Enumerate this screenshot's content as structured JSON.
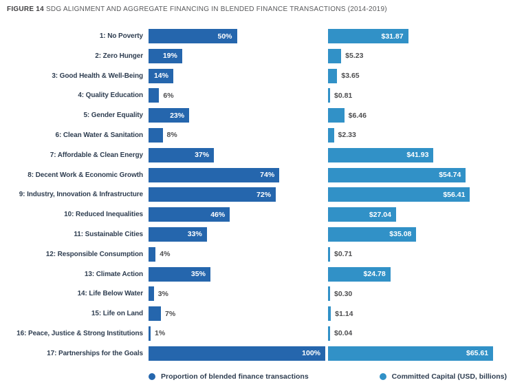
{
  "title": {
    "prefix": "FIGURE 14",
    "text": "SDG ALIGNMENT AND AGGREGATE FINANCING IN BLENDED FINANCE TRANSACTIONS (2014-2019)"
  },
  "legend": {
    "items": [
      {
        "label": "Proportion of blended finance transactions",
        "color": "#2566AD"
      },
      {
        "label": "Committed Capital (USD, billions)",
        "color": "#3191C7"
      }
    ]
  },
  "chart_data": {
    "type": "bar",
    "orientation": "horizontal",
    "title": "FIGURE 14 SDG ALIGNMENT AND AGGREGATE FINANCING IN BLENDED FINANCE TRANSACTIONS (2014-2019)",
    "grid": false,
    "legend_position": "bottom",
    "value_labels": "on bars",
    "categories": [
      "1: No Poverty",
      "2: Zero Hunger",
      "3: Good Health & Well-Being",
      "4: Quality Education",
      "5: Gender Equality",
      "6: Clean Water & Sanitation",
      "7: Affordable & Clean Energy",
      "8: Decent Work & Economic Growth",
      "9: Industry, Innovation & Infrastructure",
      "10: Reduced Inequalities",
      "11: Sustainable Cities",
      "12: Responsible Consumption",
      "13: Climate Action",
      "14: Life Below Water",
      "15: Life on Land",
      "16: Peace, Justice & Strong Institutions",
      "17: Partnerships for the Goals"
    ],
    "series": [
      {
        "name": "Proportion of blended finance transactions",
        "unit": "percent of transactions",
        "color": "#2566AD",
        "axis_range": [
          0,
          100
        ],
        "values": [
          50,
          19,
          14,
          6,
          23,
          8,
          37,
          74,
          72,
          46,
          33,
          4,
          35,
          3,
          7,
          1,
          100
        ],
        "labels": [
          "50%",
          "19%",
          "14%",
          "6%",
          "23%",
          "8%",
          "37%",
          "74%",
          "72%",
          "46%",
          "33%",
          "4%",
          "35%",
          "3%",
          "7%",
          "1%",
          "100%"
        ]
      },
      {
        "name": "Committed Capital (USD, billions)",
        "unit": "USD billions",
        "color": "#3191C7",
        "axis_range": [
          0,
          73.5
        ],
        "values": [
          31.87,
          5.23,
          3.65,
          0.81,
          6.46,
          2.33,
          41.93,
          54.74,
          56.41,
          27.04,
          35.08,
          0.71,
          24.78,
          0.3,
          1.14,
          0.04,
          65.61
        ],
        "labels": [
          "$31.87",
          "$5.23",
          "$3.65",
          "$0.81",
          "$6.46",
          "$2.33",
          "$41.93",
          "$54.74",
          "$56.41",
          "$27.04",
          "$35.08",
          "$0.71",
          "$24.78",
          "$0.30",
          "$1.14",
          "$0.04",
          "$65.61"
        ]
      }
    ]
  }
}
